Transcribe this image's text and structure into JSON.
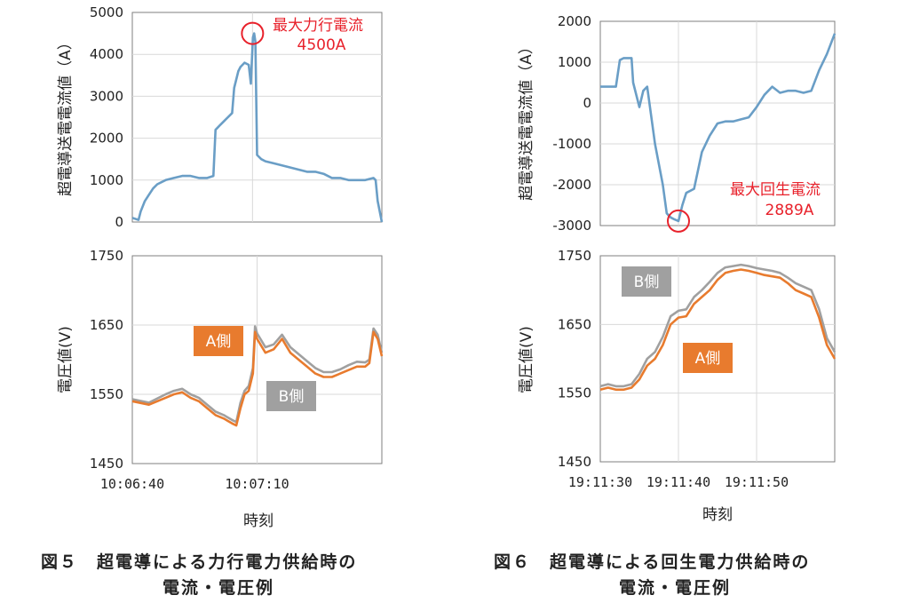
{
  "colors": {
    "current": "#6a9ec6",
    "sideA": "#e87b2e",
    "sideB": "#a0a0a0",
    "annotation": "#e8212b",
    "grid": "#d9d9d9"
  },
  "fig5": {
    "caption_line1": "図５　超電導による力行電力供給時の",
    "caption_line2": "電流・電圧例",
    "xlabel": "時刻",
    "annotation_line1": "最大力行電流",
    "annotation_line2": "4500A"
  },
  "fig6": {
    "caption_line1": "図６　超電導による回生電力供給時の",
    "caption_line2": "電流・電圧例",
    "xlabel": "時刻",
    "annotation_line1": "最大回生電流",
    "annotation_line2": "2889A"
  },
  "chart_data": [
    {
      "type": "line",
      "id": "fig5-current",
      "ylabel": "超電導送電電流値（A）",
      "ylim": [
        0,
        5000
      ],
      "yticks": [
        0,
        1000,
        2000,
        3000,
        4000,
        5000
      ],
      "xlim": [
        0,
        60
      ],
      "grid": true,
      "series": [
        {
          "values_x": [
            0,
            1.5,
            2,
            3,
            4,
            5,
            6,
            8,
            10,
            12,
            14,
            16,
            18,
            19.5,
            20,
            21,
            22,
            23,
            24,
            24.5,
            25.5,
            26,
            27,
            28,
            28.5,
            29,
            29.3,
            29.6,
            30,
            31,
            32,
            34,
            36,
            38,
            40,
            42,
            44,
            46,
            48,
            50,
            52,
            54,
            56,
            58,
            58.5,
            59,
            60
          ],
          "values": [
            100,
            50,
            250,
            500,
            650,
            800,
            900,
            1000,
            1050,
            1100,
            1100,
            1050,
            1050,
            1100,
            2200,
            2300,
            2400,
            2500,
            2600,
            3200,
            3600,
            3700,
            3800,
            3750,
            3300,
            4400,
            4500,
            4300,
            1600,
            1500,
            1450,
            1400,
            1350,
            1300,
            1250,
            1200,
            1200,
            1150,
            1050,
            1050,
            1000,
            1000,
            1000,
            1050,
            1000,
            500,
            0
          ]
        }
      ],
      "annotation": {
        "x": 28.9,
        "y": 4500
      }
    },
    {
      "type": "line",
      "id": "fig5-voltage",
      "ylabel": "電圧値(V)",
      "ylim": [
        1450,
        1750
      ],
      "yticks": [
        1450,
        1550,
        1650,
        1750
      ],
      "xlim": [
        0,
        60
      ],
      "xticks": [
        {
          "x": 0,
          "label": "10:06:40"
        },
        {
          "x": 30,
          "label": "10:07:10"
        }
      ],
      "grid": true,
      "series": [
        {
          "name": "A側",
          "values_x": [
            0,
            4,
            8,
            10,
            12,
            14,
            16,
            18,
            20,
            22,
            24,
            25,
            26,
            27,
            28,
            29,
            29.5,
            30,
            32,
            34,
            36,
            38,
            40,
            42,
            44,
            46,
            48,
            50,
            52,
            54,
            56,
            57,
            58,
            59,
            60
          ],
          "values": [
            1540,
            1535,
            1545,
            1550,
            1553,
            1545,
            1540,
            1530,
            1520,
            1515,
            1508,
            1505,
            1530,
            1550,
            1555,
            1580,
            1640,
            1630,
            1610,
            1615,
            1630,
            1610,
            1600,
            1590,
            1580,
            1575,
            1575,
            1580,
            1585,
            1590,
            1590,
            1595,
            1640,
            1630,
            1605
          ]
        },
        {
          "name": "B側",
          "values_x": [
            0,
            4,
            8,
            10,
            12,
            14,
            16,
            18,
            20,
            22,
            24,
            25,
            26,
            27,
            28,
            29,
            29.5,
            30,
            32,
            34,
            36,
            38,
            40,
            42,
            44,
            46,
            48,
            50,
            52,
            54,
            56,
            57,
            58,
            59,
            60
          ],
          "values": [
            1543,
            1538,
            1550,
            1555,
            1558,
            1550,
            1545,
            1535,
            1525,
            1520,
            1513,
            1510,
            1538,
            1555,
            1562,
            1588,
            1648,
            1638,
            1618,
            1622,
            1636,
            1618,
            1608,
            1598,
            1588,
            1582,
            1582,
            1586,
            1592,
            1597,
            1596,
            1600,
            1645,
            1636,
            1610
          ]
        }
      ]
    },
    {
      "type": "line",
      "id": "fig6-current",
      "ylabel": "超電導送電電流値（A）",
      "ylim": [
        -3000,
        2000
      ],
      "yticks": [
        -3000,
        -2000,
        -1000,
        0,
        1000,
        2000
      ],
      "xlim": [
        0,
        30
      ],
      "grid": true,
      "series": [
        {
          "values_x": [
            0,
            2,
            2.5,
            3,
            4,
            4.2,
            5,
            5.5,
            6,
            7,
            8,
            8.5,
            9,
            9.5,
            10,
            10.5,
            11,
            12,
            13,
            14,
            15,
            16,
            17,
            18,
            19,
            20,
            21,
            22,
            23,
            24,
            25,
            26,
            27,
            28,
            29,
            30
          ],
          "values": [
            400,
            400,
            1050,
            1100,
            1100,
            500,
            -100,
            300,
            400,
            -1000,
            -2000,
            -2700,
            -2800,
            -2850,
            -2889,
            -2500,
            -2200,
            -2100,
            -1200,
            -800,
            -500,
            -450,
            -450,
            -400,
            -350,
            -100,
            200,
            400,
            250,
            300,
            300,
            250,
            300,
            800,
            1200,
            1700
          ]
        }
      ],
      "annotation": {
        "x": 10,
        "y": -2889
      }
    },
    {
      "type": "line",
      "id": "fig6-voltage",
      "ylabel": "電圧値(V)",
      "ylim": [
        1450,
        1750
      ],
      "yticks": [
        1450,
        1550,
        1650,
        1750
      ],
      "xlim": [
        0,
        30
      ],
      "xticks": [
        {
          "x": 0,
          "label": "19:11:30"
        },
        {
          "x": 10,
          "label": "19:11:40"
        },
        {
          "x": 20,
          "label": "19:11:50"
        }
      ],
      "grid": true,
      "series": [
        {
          "name": "A側",
          "values_x": [
            0,
            1,
            2,
            3,
            4,
            5,
            6,
            7,
            8,
            9,
            10,
            11,
            12,
            13,
            14,
            15,
            16,
            17,
            18,
            19,
            20,
            21,
            22,
            23,
            24,
            25,
            26,
            27,
            28,
            29,
            30
          ],
          "values": [
            1555,
            1558,
            1555,
            1555,
            1558,
            1570,
            1590,
            1600,
            1620,
            1650,
            1660,
            1662,
            1680,
            1690,
            1700,
            1715,
            1725,
            1728,
            1730,
            1728,
            1725,
            1722,
            1720,
            1718,
            1710,
            1700,
            1695,
            1690,
            1660,
            1620,
            1600
          ]
        },
        {
          "name": "B側",
          "values_x": [
            0,
            1,
            2,
            3,
            4,
            5,
            6,
            7,
            8,
            9,
            10,
            11,
            12,
            13,
            14,
            15,
            16,
            17,
            18,
            19,
            20,
            21,
            22,
            23,
            24,
            25,
            26,
            27,
            28,
            29,
            30
          ],
          "values": [
            1560,
            1563,
            1560,
            1560,
            1563,
            1578,
            1600,
            1610,
            1632,
            1662,
            1670,
            1672,
            1690,
            1700,
            1712,
            1725,
            1733,
            1735,
            1737,
            1735,
            1732,
            1730,
            1728,
            1725,
            1718,
            1710,
            1705,
            1700,
            1672,
            1630,
            1610
          ]
        }
      ]
    }
  ]
}
